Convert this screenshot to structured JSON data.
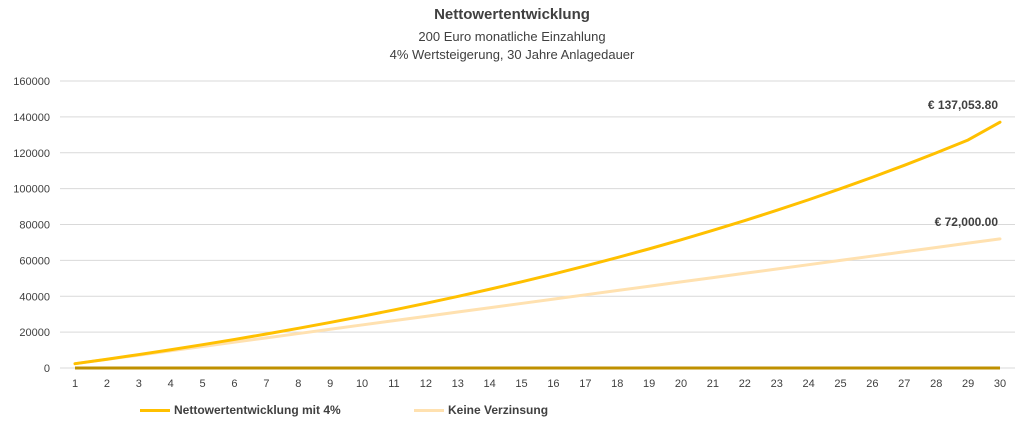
{
  "chart_data": {
    "type": "line",
    "title": "Nettowertentwicklung",
    "subtitle_lines": [
      "200 Euro monatliche Einzahlung",
      "4% Wertsteigerung, 30 Jahre Anlagedauer"
    ],
    "xlabel": "",
    "ylabel": "",
    "x": [
      1,
      2,
      3,
      4,
      5,
      6,
      7,
      8,
      9,
      10,
      11,
      12,
      13,
      14,
      15,
      16,
      17,
      18,
      19,
      20,
      21,
      22,
      23,
      24,
      25,
      26,
      27,
      28,
      29,
      30
    ],
    "ylim": [
      0,
      160000
    ],
    "yticks": [
      "0",
      "20000",
      "40000",
      "60000",
      "80000",
      "100000",
      "120000",
      "140000",
      "160000"
    ],
    "grid": true,
    "legend_position": "bottom-left",
    "series": [
      {
        "name": "Nettowertentwicklung mit 4%",
        "color": "#FFC000",
        "values": [
          2400,
          4896,
          7492,
          10191,
          12999,
          15919,
          18956,
          22114,
          25399,
          28815,
          32368,
          36063,
          39905,
          43902,
          48058,
          52380,
          56876,
          61551,
          66413,
          71470,
          76729,
          82198,
          87886,
          93802,
          99954,
          106352,
          113006,
          119926,
          127123,
          137054
        ],
        "end_label": "€ 137,053.80"
      },
      {
        "name": "Keine Verzinsung",
        "color": "#FFE1B0",
        "values": [
          2400,
          4800,
          7200,
          9600,
          12000,
          14400,
          16800,
          19200,
          21600,
          24000,
          26400,
          28800,
          31200,
          33600,
          36000,
          38400,
          40800,
          43200,
          45600,
          48000,
          50400,
          52800,
          55200,
          57600,
          60000,
          62400,
          64800,
          67200,
          69600,
          72000
        ],
        "end_label": "€ 72,000.00"
      }
    ],
    "baseline": {
      "color": "#BF9000",
      "values": [
        0,
        0,
        0,
        0,
        0,
        0,
        0,
        0,
        0,
        0,
        0,
        0,
        0,
        0,
        0,
        0,
        0,
        0,
        0,
        0,
        0,
        0,
        0,
        0,
        0,
        0,
        0,
        0,
        0,
        0
      ]
    }
  }
}
